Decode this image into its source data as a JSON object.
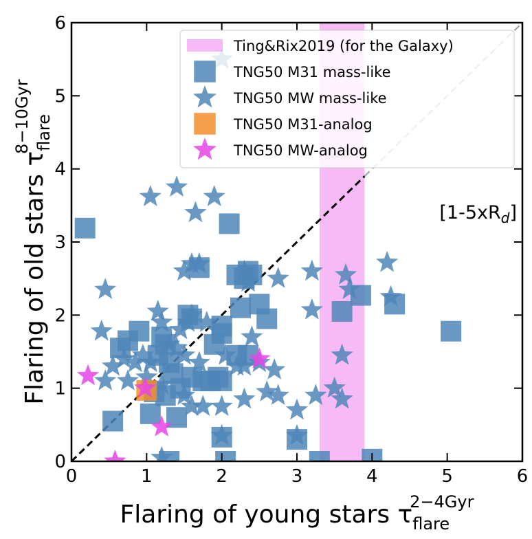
{
  "chart_data": {
    "type": "scatter",
    "xlabel": "Flaring of young stars τ",
    "xlabel_sub": "flare",
    "xlabel_sup": "2−4Gyr",
    "ylabel": "Flaring of old stars τ",
    "ylabel_sub": "flare",
    "ylabel_sup": "8−10Gyr",
    "xlim": [
      0,
      6
    ],
    "ylim": [
      0,
      6
    ],
    "xticks": [
      "0",
      "1",
      "2",
      "3",
      "4",
      "5",
      "6"
    ],
    "yticks": [
      "0",
      "1",
      "2",
      "3",
      "4",
      "5",
      "6"
    ],
    "grid": false,
    "legend_position": "top-right",
    "annotation": {
      "text": "[1-5xR",
      "sub": "d",
      "close": "]"
    },
    "band": {
      "name": "Ting&Rix2019 (for the Galaxy)",
      "x0": 3.3,
      "x1": 3.9,
      "color": "#ee82ee"
    },
    "one_to_one_line": {
      "color": "#000000",
      "extension_color": "#aaaaaa"
    },
    "series": [
      {
        "name": "TNG50 M31 mass-like",
        "marker": "square",
        "color": "#4f86b9",
        "points": [
          [
            0.18,
            3.19
          ],
          [
            2.1,
            3.25
          ],
          [
            2.2,
            2.55
          ],
          [
            2.3,
            2.5
          ],
          [
            2.35,
            2.6
          ],
          [
            2.4,
            2.55
          ],
          [
            2.5,
            2.15
          ],
          [
            2.25,
            2.1
          ],
          [
            2.6,
            1.95
          ],
          [
            1.7,
            2.65
          ],
          [
            1.55,
            2.0
          ],
          [
            1.6,
            1.95
          ],
          [
            0.9,
            1.78
          ],
          [
            0.75,
            1.65
          ],
          [
            0.65,
            1.55
          ],
          [
            1.2,
            1.7
          ],
          [
            1.25,
            1.6
          ],
          [
            1.15,
            1.45
          ],
          [
            1.3,
            1.35
          ],
          [
            1.35,
            1.2
          ],
          [
            1.6,
            1.15
          ],
          [
            1.75,
            1.1
          ],
          [
            1.85,
            1.1
          ],
          [
            1.95,
            1.15
          ],
          [
            2.0,
            1.1
          ],
          [
            2.2,
            1.45
          ],
          [
            2.35,
            1.45
          ],
          [
            2.0,
            1.75
          ],
          [
            2.0,
            1.85
          ],
          [
            1.9,
            1.6
          ],
          [
            1.45,
            1.0
          ],
          [
            1.1,
            0.95
          ],
          [
            1.25,
            0.9
          ],
          [
            1.05,
            0.65
          ],
          [
            1.4,
            0.6
          ],
          [
            0.55,
            0.55
          ],
          [
            2.0,
            0.33
          ],
          [
            2.05,
            0.0
          ],
          [
            3.0,
            0.3
          ],
          [
            3.3,
            0.0
          ],
          [
            4.0,
            0.03
          ],
          [
            3.6,
            2.05
          ],
          [
            3.85,
            2.27
          ],
          [
            4.3,
            2.15
          ],
          [
            5.05,
            1.78
          ],
          [
            1.3,
            0.0
          ]
        ]
      },
      {
        "name": "TNG50 MW mass-like",
        "marker": "star",
        "color": "#4f86b9",
        "points": [
          [
            2.0,
            5.5
          ],
          [
            1.05,
            3.62
          ],
          [
            1.4,
            3.75
          ],
          [
            1.65,
            3.4
          ],
          [
            1.9,
            3.62
          ],
          [
            1.5,
            2.6
          ],
          [
            1.6,
            2.7
          ],
          [
            1.7,
            2.7
          ],
          [
            2.3,
            2.6
          ],
          [
            2.35,
            2.45
          ],
          [
            0.45,
            2.35
          ],
          [
            2.75,
            2.5
          ],
          [
            3.2,
            2.6
          ],
          [
            3.65,
            2.55
          ],
          [
            3.7,
            2.35
          ],
          [
            4.2,
            2.72
          ],
          [
            4.25,
            2.25
          ],
          [
            3.2,
            2.07
          ],
          [
            0.4,
            1.78
          ],
          [
            1.2,
            1.9
          ],
          [
            1.15,
            2.05
          ],
          [
            1.45,
            1.8
          ],
          [
            1.55,
            1.9
          ],
          [
            1.6,
            2.0
          ],
          [
            1.8,
            1.9
          ],
          [
            2.4,
            1.7
          ],
          [
            0.95,
            1.45
          ],
          [
            1.3,
            1.6
          ],
          [
            1.4,
            1.55
          ],
          [
            1.5,
            1.45
          ],
          [
            1.7,
            1.35
          ],
          [
            2.05,
            1.45
          ],
          [
            0.7,
            1.4
          ],
          [
            0.55,
            1.3
          ],
          [
            0.85,
            1.35
          ],
          [
            1.05,
            1.35
          ],
          [
            2.2,
            1.3
          ],
          [
            2.5,
            1.35
          ],
          [
            2.7,
            1.25
          ],
          [
            0.45,
            1.1
          ],
          [
            0.75,
            1.1
          ],
          [
            1.0,
            1.15
          ],
          [
            1.2,
            1.05
          ],
          [
            1.5,
            0.9
          ],
          [
            1.6,
            0.75
          ],
          [
            1.75,
            0.75
          ],
          [
            2.0,
            0.75
          ],
          [
            2.3,
            0.85
          ],
          [
            2.3,
            1.3
          ],
          [
            2.6,
            0.95
          ],
          [
            2.75,
            0.9
          ],
          [
            3.0,
            0.7
          ],
          [
            3.25,
            0.9
          ],
          [
            3.5,
            1.0
          ],
          [
            3.6,
            0.85
          ],
          [
            3.6,
            1.45
          ],
          [
            3.0,
            0.35
          ],
          [
            2.0,
            0.35
          ],
          [
            1.2,
            0.05
          ]
        ]
      },
      {
        "name": "TNG50 M31-analog",
        "marker": "square",
        "color": "#f28e2b",
        "points": [
          [
            1.0,
            0.97
          ]
        ]
      },
      {
        "name": "TNG50 MW-analog",
        "marker": "star",
        "color": "#e844e8",
        "points": [
          [
            0.22,
            1.17
          ],
          [
            0.98,
            1.0
          ],
          [
            1.2,
            0.47
          ],
          [
            2.5,
            1.4
          ],
          [
            0.58,
            0.0
          ]
        ]
      }
    ]
  }
}
